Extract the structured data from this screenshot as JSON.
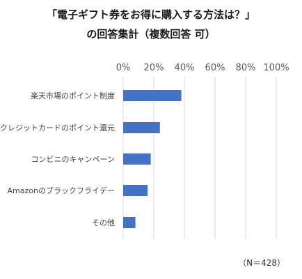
{
  "title_line1": "「電子ギフト券をお得に購入する方法は？」",
  "title_line2": "の回答集計（複数回答 可）",
  "note": "（N＝428）",
  "colors": {
    "bar": "#4472c4",
    "grid": "#d9d9d9"
  },
  "chart_data": {
    "type": "bar",
    "orientation": "horizontal",
    "title": "「電子ギフト券をお得に購入する方法は？」の回答集計（複数回答 可）",
    "categories": [
      "楽天市場のポイント制度",
      "クレジットカードのポイント還元",
      "コンビニのキャンペーン",
      "Amazonのブラックフライデー",
      "その他"
    ],
    "values": [
      38,
      24,
      18,
      16,
      8
    ],
    "xlim": [
      0,
      100
    ],
    "xticks": [
      "0%",
      "20%",
      "40%",
      "60%",
      "80%",
      "100%"
    ],
    "grid": true,
    "legend": false
  }
}
